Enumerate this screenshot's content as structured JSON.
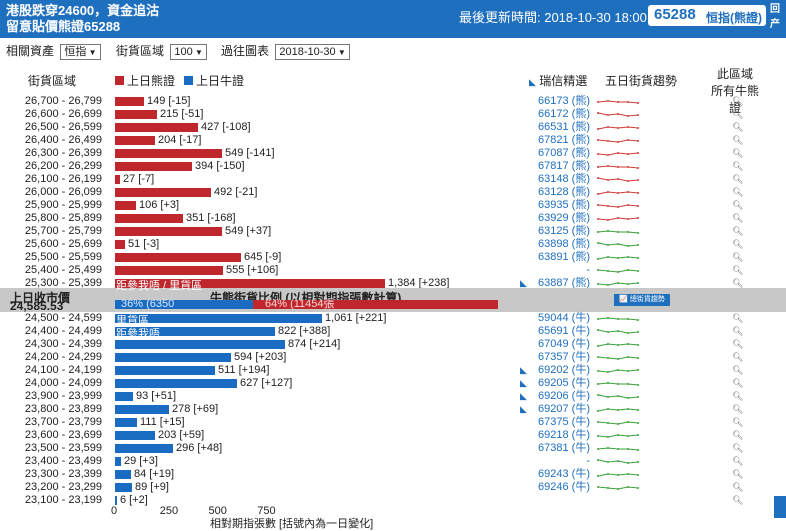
{
  "header": {
    "title_line1": "港股跌穿24600，資金追沽",
    "title_line2": "留意貼價熊證65288",
    "updated": "最後更新時間: 2018-10-30 18:00",
    "code": "65288",
    "code_label": "恒指(熊證)",
    "corner": "回产"
  },
  "filters": {
    "asset_label": "相關資產",
    "asset_value": "恒指",
    "range_label": "街貨區域",
    "range_value": "100",
    "date_label": "過往圖表",
    "date_value": "2018-10-30"
  },
  "columns": {
    "range": "街貨區域",
    "bear": "上日熊證",
    "bull": "上日牛證",
    "pick": "瑞信精選",
    "trend": "五日街貨趨勢",
    "area_line1": "此區域",
    "area_line2": "所有牛熊證"
  },
  "colors": {
    "bear": "#c0272d",
    "bull": "#1a6cc2",
    "header": "#1f6fbf"
  },
  "bear_rows": [
    {
      "range": "26,700 - 26,799",
      "value": 149,
      "label": "149 [-15]",
      "warrant": "66173 (熊)",
      "arrow": false,
      "trend": "red"
    },
    {
      "range": "26,600 - 26,699",
      "value": 215,
      "label": "215 [-51]",
      "warrant": "66172 (熊)",
      "arrow": false,
      "trend": "red"
    },
    {
      "range": "26,500 - 26,599",
      "value": 427,
      "label": "427 [-108]",
      "warrant": "66531 (熊)",
      "arrow": false,
      "trend": "red"
    },
    {
      "range": "26,400 - 26,499",
      "value": 204,
      "label": "204 [-17]",
      "warrant": "67821 (熊)",
      "arrow": false,
      "trend": "red"
    },
    {
      "range": "26,300 - 26,399",
      "value": 549,
      "label": "549 [-141]",
      "warrant": "67087 (熊)",
      "arrow": false,
      "trend": "red"
    },
    {
      "range": "26,200 - 26,299",
      "value": 394,
      "label": "394 [-150]",
      "warrant": "67817 (熊)",
      "arrow": false,
      "trend": "red"
    },
    {
      "range": "26,100 - 26,199",
      "value": 27,
      "label": "27 [-7]",
      "warrant": "63148 (熊)",
      "arrow": false,
      "trend": "red"
    },
    {
      "range": "26,000 - 26,099",
      "value": 492,
      "label": "492 [-21]",
      "warrant": "63128 (熊)",
      "arrow": false,
      "trend": "red"
    },
    {
      "range": "25,900 - 25,999",
      "value": 106,
      "label": "106 [+3]",
      "warrant": "63935 (熊)",
      "arrow": false,
      "trend": "red"
    },
    {
      "range": "25,800 - 25,899",
      "value": 351,
      "label": "351 [-168]",
      "warrant": "63929 (熊)",
      "arrow": false,
      "trend": "red"
    },
    {
      "range": "25,700 - 25,799",
      "value": 549,
      "label": "549 [+37]",
      "warrant": "63125 (熊)",
      "arrow": false,
      "trend": "green"
    },
    {
      "range": "25,600 - 25,699",
      "value": 51,
      "label": "51 [-3]",
      "warrant": "63898 (熊)",
      "arrow": false,
      "trend": "green"
    },
    {
      "range": "25,500 - 25,599",
      "value": 645,
      "label": "645 [-9]",
      "warrant": "63891 (熊)",
      "arrow": false,
      "trend": "green"
    },
    {
      "range": "25,400 - 25,499",
      "value": 555,
      "label": "555 [+106]",
      "warrant": "-",
      "arrow": false,
      "trend": "green"
    },
    {
      "range": "25,300 - 25,399",
      "value": 1384,
      "label": "1,384 [+238]",
      "warrant": "63887 (熊)",
      "arrow": true,
      "trend": "green"
    }
  ],
  "middle": {
    "close_label": "上日收市價",
    "close_value": "24,585.53",
    "ratio_title": "牛熊街貨比例 (以相對期指張數計算)",
    "bull_pct": "36% (6350",
    "bear_pct": "64% (11454張",
    "bull_share": 0.36,
    "trend_button": "總街貨趨勢",
    "overlay1": "距參我唔 / 里貨區",
    "overlay2": "里貨區",
    "overlay3": "距參我唔"
  },
  "bull_rows": [
    {
      "range": "24,500 - 24,599",
      "value": 1061,
      "label": "1,061 [+221]",
      "warrant": "59044 (牛)",
      "arrow": false
    },
    {
      "range": "24,400 - 24,499",
      "value": 822,
      "label": "822 [+388]",
      "warrant": "65691 (牛)",
      "arrow": false
    },
    {
      "range": "24,300 - 24,399",
      "value": 874,
      "label": "874 [+214]",
      "warrant": "67049 (牛)",
      "arrow": false
    },
    {
      "range": "24,200 - 24,299",
      "value": 594,
      "label": "594 [+203]",
      "warrant": "67357 (牛)",
      "arrow": false
    },
    {
      "range": "24,100 - 24,199",
      "value": 511,
      "label": "511 [+194]",
      "warrant": "69202 (牛)",
      "arrow": true
    },
    {
      "range": "24,000 - 24,099",
      "value": 627,
      "label": "627 [+127]",
      "warrant": "69205 (牛)",
      "arrow": true
    },
    {
      "range": "23,900 - 23,999",
      "value": 93,
      "label": "93 [+51]",
      "warrant": "69206 (牛)",
      "arrow": true
    },
    {
      "range": "23,800 - 23,899",
      "value": 278,
      "label": "278 [+69]",
      "warrant": "69207 (牛)",
      "arrow": true
    },
    {
      "range": "23,700 - 23,799",
      "value": 111,
      "label": "111 [+15]",
      "warrant": "67375 (牛)",
      "arrow": false
    },
    {
      "range": "23,600 - 23,699",
      "value": 203,
      "label": "203 [+59]",
      "warrant": "69218 (牛)",
      "arrow": false
    },
    {
      "range": "23,500 - 23,599",
      "value": 296,
      "label": "296 [+48]",
      "warrant": "67381 (牛)",
      "arrow": false
    },
    {
      "range": "23,400 - 23,499",
      "value": 29,
      "label": "29 [+3]",
      "warrant": "-",
      "arrow": false
    },
    {
      "range": "23,300 - 23,399",
      "value": 84,
      "label": "84 [+19]",
      "warrant": "69243 (牛)",
      "arrow": false
    },
    {
      "range": "23,200 - 23,299",
      "value": 89,
      "label": "89 [+9]",
      "warrant": "69246 (牛)",
      "arrow": false
    },
    {
      "range": "23,100 - 23,199",
      "value": 6,
      "label": "6 [+2]",
      "warrant": "",
      "arrow": false
    }
  ],
  "axis": {
    "ticks": [
      "0",
      "250",
      "500",
      "750"
    ],
    "tick_values": [
      0,
      250,
      500,
      750
    ],
    "label": "相對期指張數 [括號內為一日變化]"
  }
}
